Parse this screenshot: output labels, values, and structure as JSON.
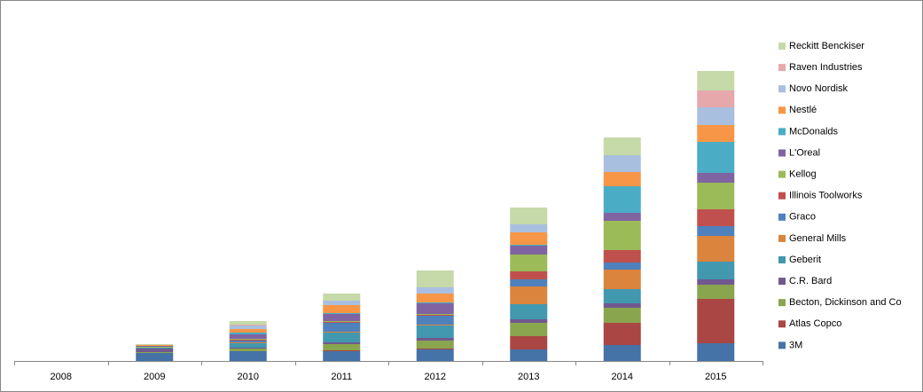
{
  "chart_data": {
    "type": "stacked-bar",
    "categories": [
      "2008",
      "2009",
      "2010",
      "2011",
      "2012",
      "2013",
      "2014",
      "2015"
    ],
    "ylim": [
      0,
      400
    ],
    "legend": "right",
    "series": [
      {
        "name": "3M",
        "color": "#4572a7",
        "values": [
          0,
          9,
          11,
          11,
          13,
          13,
          18,
          20
        ]
      },
      {
        "name": "Atlas Copco",
        "color": "#aa4643",
        "values": [
          0,
          0,
          0,
          1,
          1,
          15,
          25,
          50
        ]
      },
      {
        "name": "Becton, Dickinson and Co",
        "color": "#89a54e",
        "values": [
          0,
          1,
          3,
          7,
          9,
          15,
          17,
          16
        ]
      },
      {
        "name": "C.R. Bard",
        "color": "#71588f",
        "values": [
          0,
          4,
          1,
          2,
          3,
          4,
          5,
          6
        ]
      },
      {
        "name": "Geberit",
        "color": "#4198af",
        "values": [
          0,
          1,
          5,
          11,
          14,
          17,
          16,
          20
        ]
      },
      {
        "name": "General Mills",
        "color": "#db843d",
        "values": [
          0,
          0,
          1,
          1,
          1,
          20,
          22,
          29
        ]
      },
      {
        "name": "Graco",
        "color": "#4f81bd",
        "values": [
          0,
          0,
          2,
          10,
          10,
          8,
          8,
          11
        ]
      },
      {
        "name": "Illinois Toolworks",
        "color": "#c0504d",
        "values": [
          0,
          0,
          1,
          1,
          1,
          9,
          14,
          19
        ]
      },
      {
        "name": "Kellog",
        "color": "#9bbb59",
        "values": [
          0,
          1,
          1,
          1,
          1,
          19,
          33,
          30
        ]
      },
      {
        "name": "L'Oreal",
        "color": "#8064a2",
        "values": [
          0,
          1,
          5,
          8,
          12,
          10,
          9,
          11
        ]
      },
      {
        "name": "McDonalds",
        "color": "#4bacc6",
        "values": [
          0,
          0,
          2,
          1,
          1,
          1,
          30,
          35
        ]
      },
      {
        "name": "Nestlé",
        "color": "#f79646",
        "values": [
          0,
          1,
          4,
          9,
          10,
          14,
          16,
          19
        ]
      },
      {
        "name": "Novo Nordisk",
        "color": "#a9bfe0",
        "values": [
          0,
          0,
          4,
          5,
          7,
          9,
          19,
          20
        ]
      },
      {
        "name": "Raven Industries",
        "color": "#e6a8ab",
        "values": [
          0,
          0,
          1,
          0,
          0,
          0,
          0,
          19
        ]
      },
      {
        "name": "Reckitt Benckiser",
        "color": "#c6d9a8",
        "values": [
          0,
          1,
          4,
          8,
          19,
          19,
          20,
          22
        ]
      }
    ]
  }
}
